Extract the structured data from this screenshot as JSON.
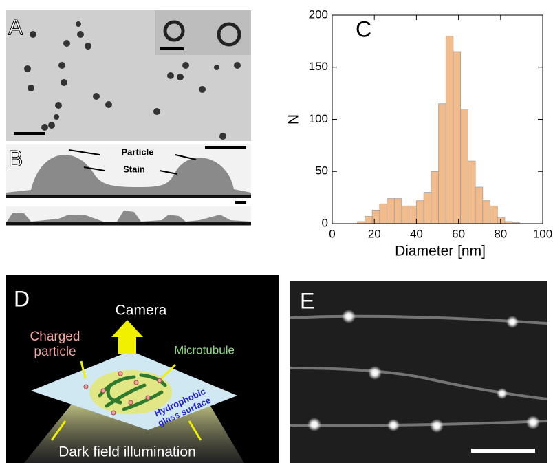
{
  "panel_labels": [
    "A",
    "B",
    "C",
    "D",
    "E"
  ],
  "panel_b": {
    "particle": "Particle",
    "stain": "Stain"
  },
  "panel_d": {
    "camera": "Camera",
    "charged_particle": [
      "Charged",
      "particle"
    ],
    "microtubule": "Microtubule",
    "surface": [
      "Hydrophobic",
      "glass surface"
    ],
    "illumination": "Dark field illumination"
  },
  "chart_data": {
    "type": "histogram",
    "bins": [
      12,
      15.5,
      19,
      22.5,
      26,
      29.5,
      33,
      36.5,
      40,
      43.5,
      47,
      50.5,
      54,
      57.5,
      61,
      64.5,
      68,
      71.5,
      75,
      78.5,
      82,
      85.5,
      89
    ],
    "values": [
      2,
      7,
      13,
      19,
      24,
      24,
      17,
      17,
      22,
      30,
      50,
      115,
      180,
      165,
      110,
      60,
      35,
      22,
      17,
      6,
      2,
      1
    ],
    "color": "#f2bb8c",
    "x_label": "Diameter  [nm]",
    "y_label": "N",
    "xlim": [
      0,
      100
    ],
    "xticks": [
      0,
      20,
      40,
      60,
      80,
      100
    ],
    "ylim": [
      0,
      200
    ],
    "yticks": [
      0,
      50,
      100,
      150,
      200
    ]
  }
}
